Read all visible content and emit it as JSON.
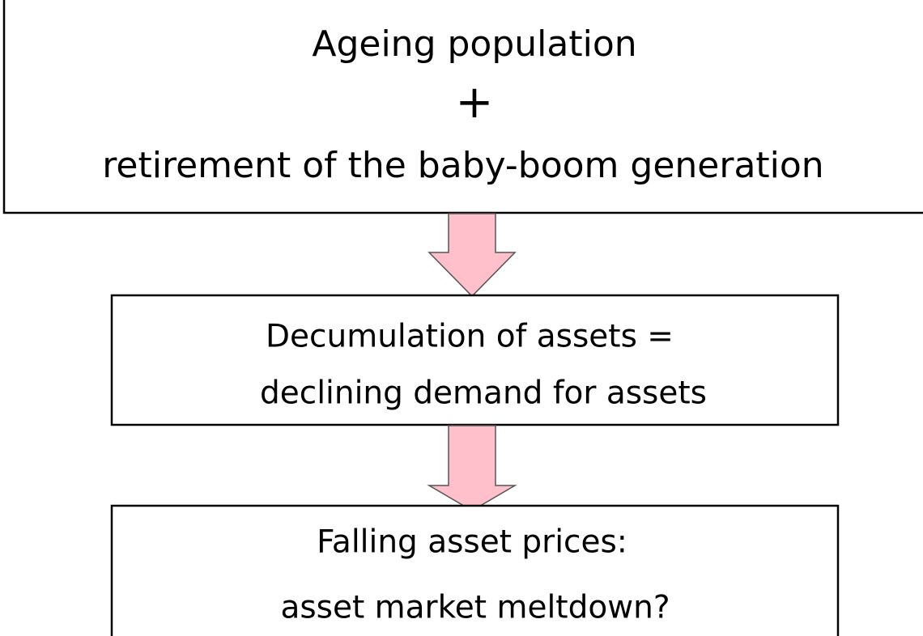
{
  "nodes": [
    {
      "lines": [
        "Ageing population",
        "+",
        "retirement of the baby-boom generation"
      ]
    },
    {
      "lines": [
        "Decumulation of assets =",
        "declining demand for assets"
      ]
    },
    {
      "lines": [
        "Falling asset prices:",
        "asset market meltdown?"
      ]
    }
  ]
}
